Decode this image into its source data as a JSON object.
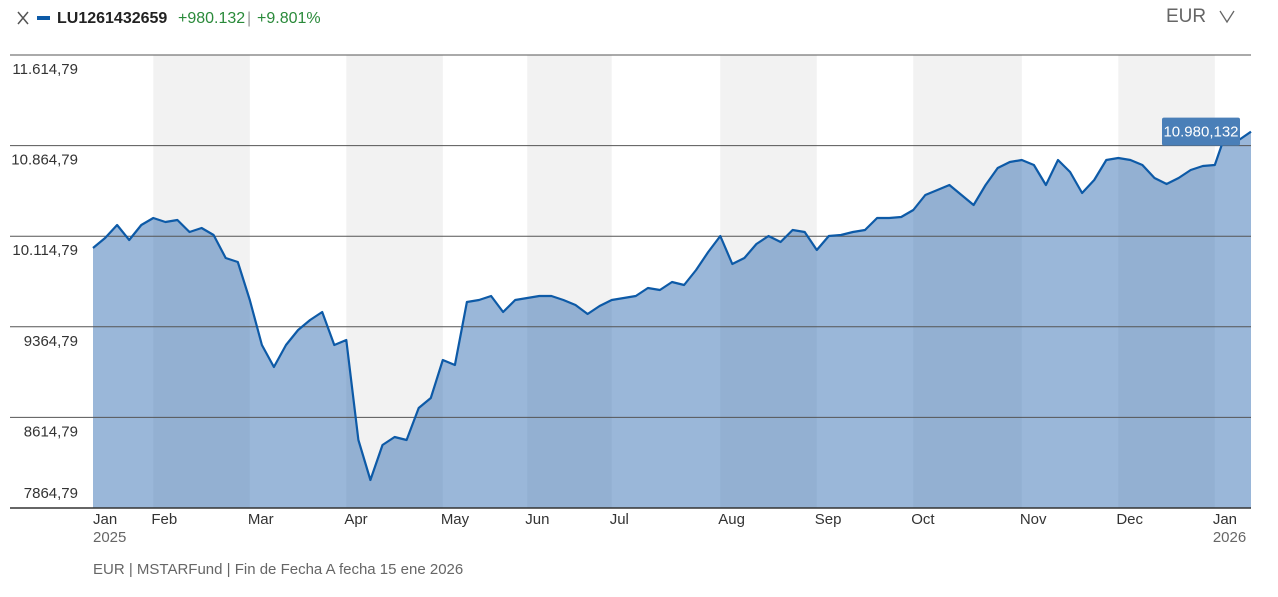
{
  "header": {
    "change": "+980.132",
    "separator": "|",
    "change_pct": "+9.801%",
    "currency": "EUR"
  },
  "footer": "EUR | MSTARFund | Fin de Fecha A fecha 15 ene 2026",
  "chart_data": {
    "type": "area",
    "categories": [
      "Jan",
      null,
      null,
      null,
      null,
      "Feb",
      null,
      null,
      null,
      null,
      null,
      null,
      null,
      "Mar",
      null,
      null,
      null,
      null,
      null,
      null,
      null,
      "Apr",
      null,
      null,
      null,
      null,
      null,
      null,
      null,
      "May",
      null,
      null,
      null,
      null,
      null,
      null,
      "Jun",
      null,
      null,
      null,
      null,
      null,
      null,
      "Jul",
      null,
      null,
      null,
      null,
      null,
      null,
      null,
      null,
      "Aug",
      null,
      null,
      null,
      null,
      null,
      null,
      null,
      "Sep",
      null,
      null,
      null,
      null,
      null,
      null,
      null,
      "Oct",
      null,
      null,
      null,
      null,
      null,
      null,
      null,
      null,
      "Nov",
      null,
      null,
      null,
      null,
      null,
      null,
      null,
      "Dec",
      null,
      null,
      null,
      null,
      null,
      null,
      null,
      "Jan",
      null,
      null,
      null
    ],
    "x_sublabels": [
      "2025",
      null,
      null,
      null,
      null,
      null,
      null,
      null,
      null,
      null,
      null,
      null,
      null,
      null,
      null,
      null,
      null,
      null,
      null,
      null,
      null,
      null,
      null,
      null,
      null,
      null,
      null,
      null,
      null,
      null,
      null,
      null,
      null,
      null,
      null,
      null,
      null,
      null,
      null,
      null,
      null,
      null,
      null,
      null,
      null,
      null,
      null,
      null,
      null,
      null,
      null,
      null,
      null,
      null,
      null,
      null,
      null,
      null,
      null,
      null,
      null,
      null,
      null,
      null,
      null,
      null,
      null,
      null,
      null,
      null,
      null,
      null,
      null,
      null,
      null,
      null,
      null,
      null,
      null,
      null,
      null,
      null,
      null,
      null,
      null,
      null,
      null,
      null,
      null,
      null,
      null,
      null,
      null,
      "2026",
      null,
      null,
      null
    ],
    "series": [
      {
        "name": "LU1261432659",
        "color": "#0d5aa7",
        "values": [
          10017.1,
          10099.9,
          10207.5,
          10083.4,
          10207.5,
          10265.5,
          10232.4,
          10248.9,
          10149.6,
          10182.7,
          10124.7,
          9934.3,
          9901.2,
          9586.7,
          9214.2,
          9032.0,
          9214.2,
          9338.3,
          9421.1,
          9487.3,
          9214.2,
          9255.5,
          8427.7,
          8096.6,
          8386.3,
          8452.6,
          8427.7,
          8692.6,
          8775.4,
          9090.0,
          9048.6,
          9570.1,
          9586.7,
          9619.8,
          9487.3,
          9586.7,
          9603.2,
          9619.8,
          9619.8,
          9586.7,
          9545.3,
          9470.8,
          9537.0,
          9586.7,
          9603.2,
          9619.8,
          9686.0,
          9669.4,
          9735.7,
          9710.8,
          9835.0,
          9984.0,
          10116.5,
          9884.7,
          9934.3,
          10050.2,
          10116.5,
          10066.8,
          10166.1,
          10149.6,
          10000.6,
          10116.5,
          10124.7,
          10149.6,
          10166.1,
          10265.5,
          10265.5,
          10273.7,
          10331.7,
          10455.9,
          10497.3,
          10538.6,
          10455.9,
          10373.1,
          10538.6,
          10679.4,
          10729.0,
          10745.6,
          10704.2,
          10538.6,
          10745.6,
          10646.3,
          10472.4,
          10580.0,
          10745.6,
          10762.2,
          10745.6,
          10704.2,
          10596.6,
          10546.9,
          10596.6,
          10662.8,
          10695.9,
          10704.2,
          10993.9,
          10911.2,
          10980.132
        ],
        "value_labels": [
          null,
          null,
          null,
          null,
          null,
          null,
          null,
          null,
          null,
          null,
          null,
          null,
          null,
          null,
          null,
          null,
          null,
          null,
          null,
          null,
          null,
          null,
          null,
          null,
          null,
          null,
          null,
          null,
          null,
          null,
          null,
          null,
          null,
          null,
          null,
          null,
          null,
          null,
          null,
          null,
          null,
          null,
          null,
          null,
          null,
          null,
          null,
          null,
          null,
          null,
          null,
          null,
          null,
          null,
          null,
          null,
          null,
          null,
          null,
          null,
          null,
          null,
          null,
          null,
          null,
          null,
          null,
          null,
          null,
          null,
          null,
          null,
          null,
          null,
          null,
          null,
          null,
          null,
          null,
          null,
          null,
          null,
          null,
          null,
          null,
          null,
          null,
          null,
          null,
          null,
          null,
          null,
          null,
          null,
          null,
          null,
          "10.980,132"
        ]
      }
    ],
    "ylim": [
      7864.79,
      11614.79
    ],
    "yticks": [
      {
        "value": 7864.79,
        "label": "7864,79"
      },
      {
        "value": 8614.79,
        "label": "8614,79"
      },
      {
        "value": 9364.79,
        "label": "9364,79"
      },
      {
        "value": 10114.79,
        "label": "10.114,79"
      },
      {
        "value": 10864.79,
        "label": "10.864,79"
      },
      {
        "value": 11614.79,
        "label": "11.614,79"
      }
    ],
    "grid": true
  }
}
